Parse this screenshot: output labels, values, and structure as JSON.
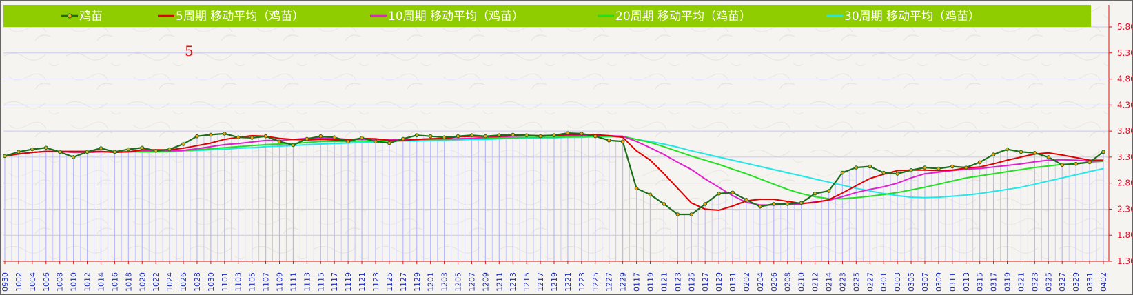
{
  "chart_data": {
    "type": "line",
    "legend": [
      {
        "label": "鸡苗",
        "color": "#1a6e1a",
        "marker": "circle"
      },
      {
        "label": "5周期 移动平均（鸡苗）",
        "color": "#e00000"
      },
      {
        "label": "10周期 移动平均（鸡苗）",
        "color": "#e020d0"
      },
      {
        "label": "20周期 移动平均（鸡苗）",
        "color": "#20e020"
      },
      {
        "label": "30周期 移动平均（鸡苗）",
        "color": "#20e8e8"
      }
    ],
    "annotation": "5",
    "ylim": [
      1.3,
      5.8
    ],
    "yticks": [
      "1.30",
      "1.80",
      "2.30",
      "2.80",
      "3.30",
      "3.80",
      "4.30",
      "4.80",
      "5.30",
      "5.80"
    ],
    "x_labels": [
      "0930",
      "1002",
      "1004",
      "1006",
      "1008",
      "1010",
      "1012",
      "1014",
      "1016",
      "1018",
      "1020",
      "1022",
      "1024",
      "1026",
      "1028",
      "1030",
      "1101",
      "1103",
      "1105",
      "1107",
      "1109",
      "1111",
      "1113",
      "1115",
      "1117",
      "1119",
      "1121",
      "1123",
      "1125",
      "1127",
      "1129",
      "1201",
      "1203",
      "1205",
      "1207",
      "1209",
      "1211",
      "1213",
      "1215",
      "1217",
      "1219",
      "1221",
      "1223",
      "1225",
      "1227",
      "1229",
      "0117",
      "0119",
      "0121",
      "0123",
      "0125",
      "0127",
      "0129",
      "0131",
      "0202",
      "0204",
      "0206",
      "0208",
      "0210",
      "0212",
      "0214",
      "0223",
      "0225",
      "0227",
      "0301",
      "0303",
      "0305",
      "0307",
      "0309",
      "0311",
      "0313",
      "0315",
      "0317",
      "0319",
      "0321",
      "0323",
      "0325",
      "0327",
      "0329",
      "0331",
      "0402"
    ],
    "series": [
      {
        "name": "鸡苗",
        "values": [
          3.32,
          3.4,
          3.45,
          3.48,
          3.4,
          3.3,
          3.4,
          3.47,
          3.4,
          3.45,
          3.48,
          3.42,
          3.45,
          3.55,
          3.7,
          3.73,
          3.75,
          3.68,
          3.67,
          3.7,
          3.6,
          3.53,
          3.65,
          3.7,
          3.68,
          3.6,
          3.67,
          3.6,
          3.57,
          3.65,
          3.72,
          3.7,
          3.68,
          3.7,
          3.72,
          3.7,
          3.72,
          3.73,
          3.72,
          3.7,
          3.72,
          3.76,
          3.75,
          3.7,
          3.62,
          3.6,
          2.7,
          2.58,
          2.4,
          2.2,
          2.2,
          2.4,
          2.6,
          2.62,
          2.48,
          2.35,
          2.4,
          2.4,
          2.42,
          2.6,
          2.65,
          3.0,
          3.1,
          3.12,
          3.0,
          2.98,
          3.05,
          3.1,
          3.08,
          3.12,
          3.1,
          3.2,
          3.35,
          3.45,
          3.4,
          3.38,
          3.3,
          3.15,
          3.17,
          3.2,
          3.4
        ]
      },
      {
        "name": "5周期 移动平均（鸡苗）",
        "values": [
          3.32,
          3.36,
          3.39,
          3.41,
          3.41,
          3.41,
          3.41,
          3.41,
          3.39,
          3.4,
          3.44,
          3.44,
          3.44,
          3.47,
          3.52,
          3.57,
          3.64,
          3.68,
          3.71,
          3.7,
          3.66,
          3.64,
          3.63,
          3.64,
          3.63,
          3.63,
          3.66,
          3.65,
          3.62,
          3.62,
          3.64,
          3.65,
          3.66,
          3.69,
          3.7,
          3.7,
          3.7,
          3.71,
          3.72,
          3.71,
          3.72,
          3.73,
          3.73,
          3.73,
          3.71,
          3.68,
          3.42,
          3.24,
          2.98,
          2.7,
          2.42,
          2.3,
          2.28,
          2.36,
          2.46,
          2.49,
          2.49,
          2.45,
          2.41,
          2.43,
          2.48,
          2.61,
          2.75,
          2.89,
          2.97,
          3.04,
          3.05,
          3.05,
          3.04,
          3.05,
          3.09,
          3.11,
          3.17,
          3.24,
          3.3,
          3.36,
          3.38,
          3.34,
          3.29,
          3.24,
          3.24
        ]
      },
      {
        "name": "10周期 移动平均（鸡苗）",
        "values": [
          3.32,
          3.36,
          3.39,
          3.41,
          3.41,
          3.39,
          3.39,
          3.4,
          3.4,
          3.4,
          3.42,
          3.42,
          3.42,
          3.43,
          3.46,
          3.5,
          3.54,
          3.56,
          3.59,
          3.62,
          3.62,
          3.64,
          3.66,
          3.67,
          3.66,
          3.64,
          3.64,
          3.64,
          3.63,
          3.63,
          3.64,
          3.65,
          3.65,
          3.65,
          3.66,
          3.68,
          3.69,
          3.7,
          3.71,
          3.71,
          3.71,
          3.72,
          3.72,
          3.72,
          3.71,
          3.7,
          3.6,
          3.48,
          3.35,
          3.2,
          3.06,
          2.88,
          2.72,
          2.56,
          2.43,
          2.38,
          2.38,
          2.39,
          2.4,
          2.44,
          2.47,
          2.54,
          2.62,
          2.68,
          2.73,
          2.8,
          2.9,
          2.98,
          3.01,
          3.04,
          3.07,
          3.08,
          3.11,
          3.14,
          3.17,
          3.21,
          3.24,
          3.25,
          3.24,
          3.22,
          3.23
        ]
      },
      {
        "name": "20周期 移动平均（鸡苗）",
        "values": [
          3.32,
          3.36,
          3.39,
          3.41,
          3.41,
          3.39,
          3.39,
          3.4,
          3.4,
          3.4,
          3.4,
          3.4,
          3.41,
          3.42,
          3.44,
          3.46,
          3.48,
          3.5,
          3.52,
          3.54,
          3.55,
          3.56,
          3.58,
          3.6,
          3.6,
          3.6,
          3.61,
          3.61,
          3.62,
          3.63,
          3.63,
          3.64,
          3.64,
          3.65,
          3.66,
          3.66,
          3.67,
          3.67,
          3.68,
          3.68,
          3.68,
          3.69,
          3.7,
          3.7,
          3.7,
          3.7,
          3.64,
          3.58,
          3.5,
          3.41,
          3.32,
          3.24,
          3.16,
          3.07,
          2.98,
          2.88,
          2.78,
          2.68,
          2.6,
          2.54,
          2.5,
          2.5,
          2.52,
          2.55,
          2.58,
          2.62,
          2.67,
          2.72,
          2.78,
          2.84,
          2.9,
          2.94,
          2.98,
          3.02,
          3.06,
          3.1,
          3.13,
          3.16,
          3.18,
          3.2,
          3.22
        ]
      },
      {
        "name": "30周期 移动平均（鸡苗）",
        "values": [
          3.32,
          3.36,
          3.39,
          3.41,
          3.41,
          3.39,
          3.39,
          3.4,
          3.4,
          3.4,
          3.4,
          3.4,
          3.41,
          3.42,
          3.43,
          3.44,
          3.45,
          3.47,
          3.48,
          3.5,
          3.51,
          3.52,
          3.54,
          3.55,
          3.56,
          3.57,
          3.58,
          3.59,
          3.6,
          3.61,
          3.61,
          3.62,
          3.62,
          3.63,
          3.64,
          3.64,
          3.65,
          3.66,
          3.66,
          3.67,
          3.67,
          3.68,
          3.68,
          3.69,
          3.69,
          3.69,
          3.64,
          3.6,
          3.55,
          3.49,
          3.42,
          3.36,
          3.3,
          3.24,
          3.18,
          3.12,
          3.06,
          3.0,
          2.94,
          2.88,
          2.82,
          2.76,
          2.7,
          2.65,
          2.6,
          2.56,
          2.53,
          2.52,
          2.53,
          2.55,
          2.57,
          2.6,
          2.64,
          2.68,
          2.72,
          2.78,
          2.84,
          2.9,
          2.96,
          3.02,
          3.08
        ]
      }
    ]
  }
}
